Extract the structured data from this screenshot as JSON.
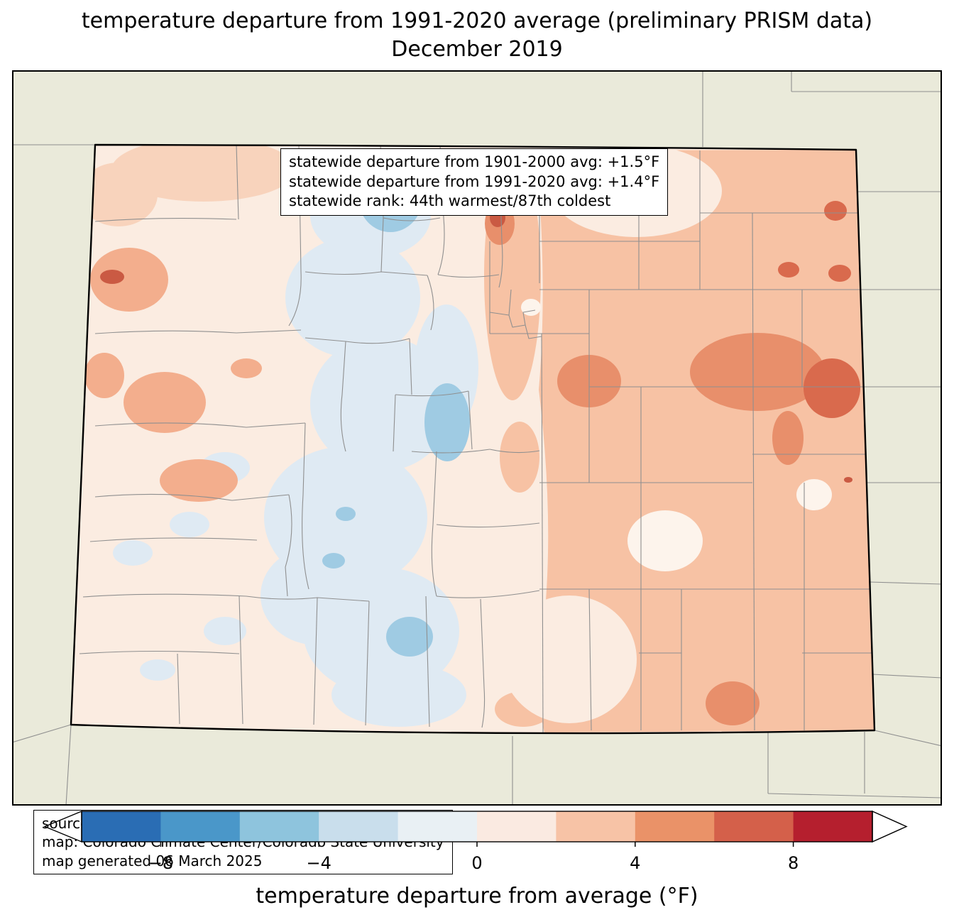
{
  "title": {
    "line1": "temperature departure from 1991-2020 average (preliminary PRISM data)",
    "line2": "December 2019"
  },
  "stats_box": {
    "lines": [
      "statewide departure from 1901-2000 avg: +1.5°F",
      "statewide departure from 1991-2020 avg: +1.4°F",
      "statewide rank: 44th warmest/87th coldest"
    ]
  },
  "source_box": {
    "lines": [
      "source: PRISM Climate Group, Oregon State University",
      "map: Colorado Climate Center/Colorado State University",
      "map generated 06 March 2025"
    ]
  },
  "colorbar": {
    "label": "temperature departure from average (°F)",
    "unit": "°F",
    "range": [
      -10,
      10
    ],
    "bin_width": 2,
    "under_color": "#0a3b70",
    "over_color": "#6b0a20",
    "segments": [
      {
        "from": -10,
        "to": -8,
        "color": "#2a6db4"
      },
      {
        "from": -8,
        "to": -6,
        "color": "#4a97c9"
      },
      {
        "from": -6,
        "to": -4,
        "color": "#8ec4dd"
      },
      {
        "from": -4,
        "to": -2,
        "color": "#c9deec"
      },
      {
        "from": -2,
        "to": 0,
        "color": "#e9f0f4"
      },
      {
        "from": 0,
        "to": 2,
        "color": "#faeae1"
      },
      {
        "from": 2,
        "to": 4,
        "color": "#f7c3a6"
      },
      {
        "from": 4,
        "to": 6,
        "color": "#ea9268"
      },
      {
        "from": 6,
        "to": 8,
        "color": "#d4604a"
      },
      {
        "from": 8,
        "to": 10,
        "color": "#b51f2e"
      }
    ],
    "ticks": [
      {
        "value": -8,
        "label": "−8"
      },
      {
        "value": -4,
        "label": "−4"
      },
      {
        "value": 0,
        "label": "0"
      },
      {
        "value": 4,
        "label": "4"
      },
      {
        "value": 8,
        "label": "8"
      }
    ]
  },
  "map": {
    "region": "Colorado",
    "depicts": "gridded temperature departure raster with county boundaries; cool (blue) anomalies in central mountains, warm (orange/red) anomalies on eastern plains",
    "palette": {
      "beige": "#eaeada",
      "pale-pink": "#fbece1",
      "pale-salmon": "#f8d3bc",
      "salmon": "#f7c2a4",
      "salmon-deep": "#f3ae8d",
      "orange": "#e88f6b",
      "orange-dark": "#d96a4d",
      "red": "#ca5a43",
      "pale-blue": "#dfeaf3",
      "med-blue": "#9fcbe3",
      "dark-blue": "#4e96c6",
      "near-white": "#fdf4ec",
      "county-line": "#8f8f8f",
      "state-border": "#000000"
    }
  }
}
